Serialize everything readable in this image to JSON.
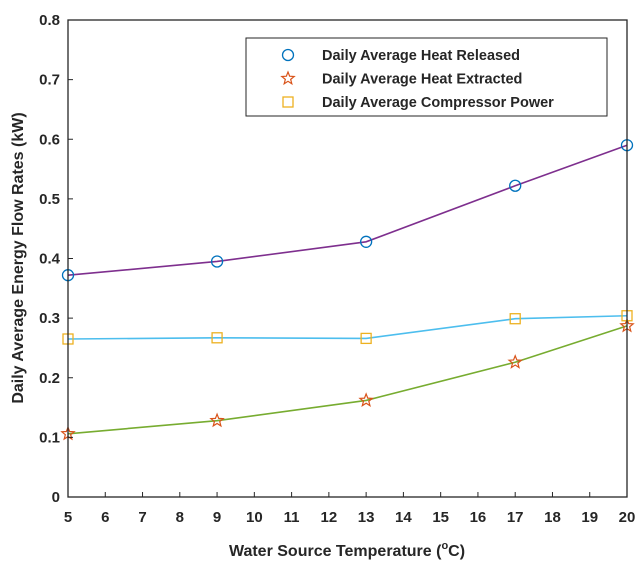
{
  "chart_data": {
    "type": "line",
    "xlabel": "Water Source Temperature (",
    "xlabel_unit_sup": "o",
    "xlabel_unit": "C)",
    "ylabel": "Daily Average Energy Flow Rates (kW)",
    "xlim": [
      5,
      20
    ],
    "ylim": [
      0,
      0.8
    ],
    "xticks": [
      5,
      6,
      7,
      8,
      9,
      10,
      11,
      12,
      13,
      14,
      15,
      16,
      17,
      18,
      19,
      20
    ],
    "yticks": [
      0,
      0.1,
      0.2,
      0.3,
      0.4,
      0.5,
      0.6,
      0.7,
      0.8
    ],
    "ytick_labels": [
      "0",
      "0.1",
      "0.2",
      "0.3",
      "0.4",
      "0.5",
      "0.6",
      "0.7",
      "0.8"
    ],
    "grid": false,
    "legend_position": "top-right",
    "series": [
      {
        "name": "Daily Average Heat Released",
        "marker": "circle",
        "marker_color": "#0072BD",
        "line_color": "#7E2F8E",
        "x": [
          5,
          9,
          13,
          17,
          20
        ],
        "y": [
          0.372,
          0.395,
          0.428,
          0.522,
          0.59
        ]
      },
      {
        "name": "Daily Average Heat Extracted",
        "marker": "star",
        "marker_color": "#D95319",
        "line_color": "#77AC30",
        "x": [
          5,
          9,
          13,
          17,
          20
        ],
        "y": [
          0.106,
          0.128,
          0.162,
          0.226,
          0.287
        ]
      },
      {
        "name": "Daily Average Compressor Power",
        "marker": "square",
        "marker_color": "#EDB120",
        "line_color": "#4DBEEE",
        "x": [
          5,
          9,
          13,
          17,
          20
        ],
        "y": [
          0.265,
          0.267,
          0.266,
          0.299,
          0.304
        ]
      }
    ]
  }
}
